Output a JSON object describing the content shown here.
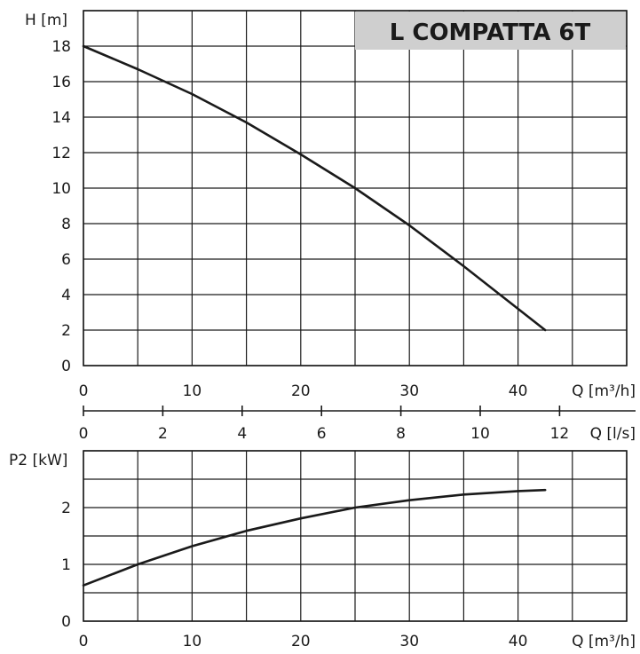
{
  "chart_data": [
    {
      "type": "line",
      "title": "L COMPATTA 6T",
      "ylabel": "H [m]",
      "xlabel": "Q [m³/h]",
      "xlim": [
        0,
        50
      ],
      "ylim": [
        0,
        20
      ],
      "x_ticks": [
        0,
        10,
        20,
        30,
        40
      ],
      "y_ticks": [
        0,
        2,
        4,
        6,
        8,
        10,
        12,
        14,
        16,
        18
      ],
      "grid": true,
      "secondary_x_axis": {
        "label": "Q [l/s]",
        "ticks": [
          0,
          2,
          4,
          6,
          8,
          10,
          12
        ]
      },
      "series": [
        {
          "x": [
            0,
            5,
            10,
            15,
            20,
            25,
            30,
            35,
            42.5
          ],
          "y": [
            18,
            16.7,
            15.3,
            13.7,
            11.9,
            10.0,
            7.9,
            5.6,
            2.0
          ]
        }
      ]
    },
    {
      "type": "line",
      "ylabel": "P2 [kW]",
      "xlabel": "Q [m³/h]",
      "xlim": [
        0,
        50
      ],
      "ylim": [
        0,
        3
      ],
      "x_ticks": [
        0,
        10,
        20,
        30,
        40
      ],
      "y_ticks": [
        0,
        1,
        2
      ],
      "grid": true,
      "series": [
        {
          "x": [
            0,
            5,
            10,
            15,
            20,
            25,
            30,
            35,
            40,
            42.5
          ],
          "y": [
            0.63,
            1.0,
            1.32,
            1.59,
            1.81,
            2.0,
            2.13,
            2.23,
            2.29,
            2.31
          ]
        }
      ]
    }
  ]
}
